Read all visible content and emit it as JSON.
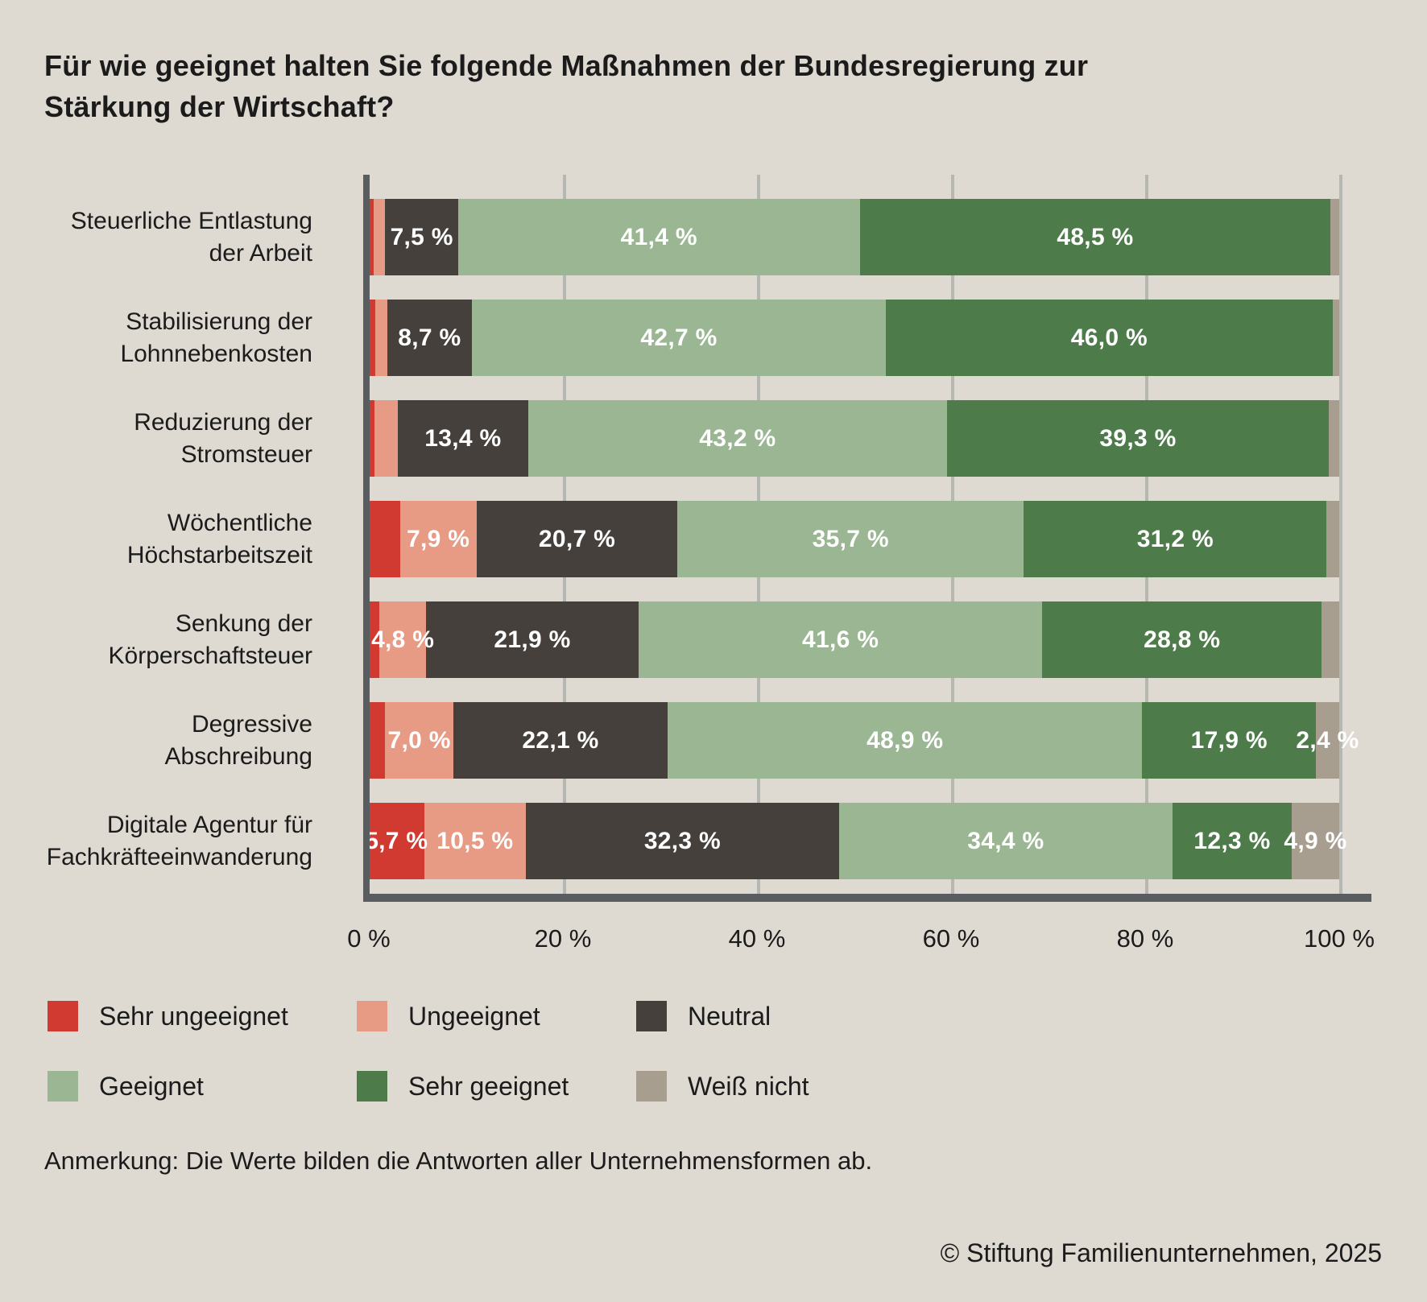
{
  "page": {
    "title": "Für wie geeignet halten Sie folgende Maßnahmen der Bundesregierung zur\nStärkung der Wirtschaft?",
    "note": "Anmerkung: Die Werte bilden die Antworten aller Unternehmensformen ab.",
    "copyright": "© Stiftung Familienunternehmen, 2025",
    "background_color": "#ded9d1",
    "text_color": "#1b1b1b"
  },
  "legend": {
    "items": [
      {
        "label": "Sehr ungeeignet",
        "color": "#d13a30",
        "row": 0,
        "col": 0
      },
      {
        "label": "Ungeeignet",
        "color": "#e79b85",
        "row": 0,
        "col": 1
      },
      {
        "label": "Neutral",
        "color": "#45403c",
        "row": 0,
        "col": 2
      },
      {
        "label": "Geeignet",
        "color": "#9ab692",
        "row": 1,
        "col": 0
      },
      {
        "label": "Sehr geeignet",
        "color": "#4d7c4a",
        "row": 1,
        "col": 1
      },
      {
        "label": "Weiß nicht",
        "color": "#a89e90",
        "row": 1,
        "col": 2
      }
    ]
  },
  "chart_data": {
    "type": "bar",
    "subtype": "horizontal_stacked_100pct",
    "unit": "%",
    "xlim": [
      0,
      100
    ],
    "x_ticks": [
      "0 %",
      "20 %",
      "40 %",
      "60 %",
      "80 %",
      "100 %"
    ],
    "grid": true,
    "value_label_color": "#ffffff",
    "axis_color": "#595d5f",
    "gridline_color": "#b5b7b3",
    "series_names": [
      "Sehr ungeeignet",
      "Ungeeignet",
      "Neutral",
      "Geeignet",
      "Sehr geeignet",
      "Weiß nicht"
    ],
    "series_colors": [
      "#d13a30",
      "#e79b85",
      "#45403c",
      "#9ab692",
      "#4d7c4a",
      "#a89e90"
    ],
    "note_small_segments_estimated": "unlabeled sliver values estimated from pixels so each row sums to 100",
    "rows": [
      {
        "category": "Steuerliche Entlastung\nder Arbeit",
        "values": [
          0.5,
          1.2,
          7.5,
          41.4,
          48.5,
          0.9
        ],
        "labels": [
          "",
          "",
          "7,5 %",
          "41,4 %",
          "48,5 %",
          ""
        ]
      },
      {
        "category": "Stabilisierung der\nLohnnebenkosten",
        "values": [
          0.7,
          1.2,
          8.7,
          42.7,
          46.0,
          0.7
        ],
        "labels": [
          "",
          "",
          "8,7 %",
          "42,7 %",
          "46,0 %",
          ""
        ]
      },
      {
        "category": "Reduzierung der\nStromsteuer",
        "values": [
          0.6,
          2.4,
          13.4,
          43.2,
          39.3,
          1.1
        ],
        "labels": [
          "",
          "",
          "13,4 %",
          "43,2 %",
          "39,3 %",
          ""
        ]
      },
      {
        "category": "Wöchentliche\nHöchstarbeitszeit",
        "values": [
          3.2,
          7.9,
          20.7,
          35.7,
          31.2,
          1.3
        ],
        "labels": [
          "",
          "7,9 %",
          "20,7 %",
          "35,7 %",
          "31,2 %",
          ""
        ]
      },
      {
        "category": "Senkung der\nKörperschaftsteuer",
        "values": [
          1.1,
          4.8,
          21.9,
          41.6,
          28.8,
          1.8
        ],
        "labels": [
          "",
          "4,8 %",
          "21,9 %",
          "41,6 %",
          "28,8 %",
          ""
        ]
      },
      {
        "category": "Degressive\nAbschreibung",
        "values": [
          1.7,
          7.0,
          22.1,
          48.9,
          17.9,
          2.4
        ],
        "labels": [
          "",
          "7,0 %",
          "22,1 %",
          "48,9 %",
          "17,9 %",
          "2,4 %"
        ]
      },
      {
        "category": "Digitale Agentur für\nFachkräfteeinwanderung",
        "values": [
          5.7,
          10.5,
          32.3,
          34.4,
          12.3,
          4.9
        ],
        "labels": [
          "5,7 %",
          "10,5 %",
          "32,3 %",
          "34,4 %",
          "12,3 %",
          "4,9 %"
        ]
      }
    ]
  }
}
